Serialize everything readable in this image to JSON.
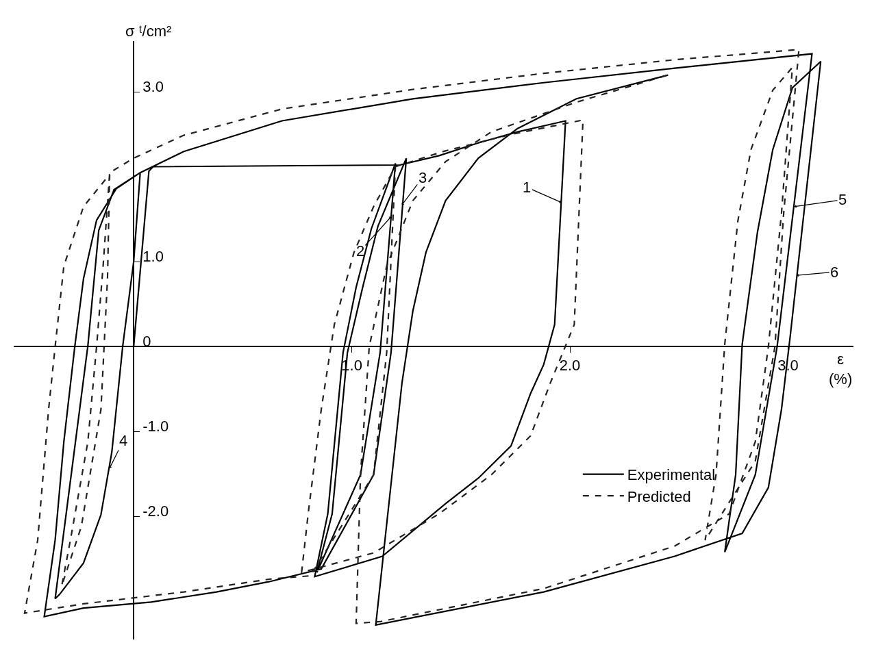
{
  "chart_data": {
    "type": "line",
    "xlabel": "ε (%)",
    "ylabel": "σ ᵗ/cm²",
    "xlim": [
      -0.55,
      3.3
    ],
    "ylim": [
      -3.45,
      3.6
    ],
    "xticks": [
      {
        "value": 1,
        "label": "1.0"
      },
      {
        "value": 2,
        "label": "2.0"
      },
      {
        "value": 3,
        "label": "3.0"
      }
    ],
    "yticks": [
      {
        "value": 3,
        "label": "3.0"
      },
      {
        "value": 1,
        "label": "1.0"
      },
      {
        "value": 0,
        "label": "0"
      },
      {
        "value": -1,
        "label": "-1.0"
      },
      {
        "value": -2,
        "label": "-2.0"
      }
    ],
    "grid": false,
    "legend": "bottom right",
    "marker": "none",
    "series": [
      {
        "name": "Experimental",
        "color": "#000000",
        "line_style": "solid",
        "x": [
          0,
          0.07,
          0.09,
          1.22,
          1.4,
          1.58,
          1.76,
          1.98,
          1.93,
          1.88,
          1.82,
          1.73,
          1.58,
          1.43,
          1.14,
          0.83,
          0.89,
          0.96,
          1.02,
          1.09,
          1.2,
          1.13,
          1.04,
          0.84,
          0.91,
          0.98,
          1.05,
          1.12,
          1.25,
          1.18,
          1.1,
          0.86,
          0.62,
          0.38,
          0.08,
          -0.23,
          -0.41,
          -0.36,
          -0.32,
          -0.27,
          -0.23,
          -0.17,
          -0.08,
          0.03,
          -0.09,
          -0.16,
          -0.21,
          -0.31,
          -0.36,
          -0.34,
          -0.23,
          -0.15,
          -0.1,
          -0.05,
          0,
          0.03,
          0.23,
          0.68,
          1.28,
          1.88,
          2.48,
          3.11,
          2.95,
          2.85,
          2.71,
          2.76,
          2.79,
          2.86,
          2.93,
          3.02,
          3.15,
          3.01,
          2.97,
          2.91,
          2.79,
          2.48,
          1.88,
          1.11,
          1.23,
          1.28,
          1.34,
          1.43,
          1.58,
          1.76,
          2.03,
          2.45
        ],
        "values": [
          0,
          2.07,
          2.12,
          2.14,
          2.25,
          2.4,
          2.53,
          2.66,
          0.26,
          -0.21,
          -0.55,
          -1.17,
          -1.55,
          -1.85,
          -2.47,
          -2.71,
          -1.97,
          -0.07,
          0.7,
          1.39,
          2.16,
          -0.07,
          -1.51,
          -2.66,
          -1.97,
          -0.07,
          0.7,
          1.42,
          2.22,
          -0.07,
          -1.51,
          -2.62,
          -2.77,
          -2.89,
          -3.01,
          -3.08,
          -3.18,
          -2.28,
          -1.12,
          0,
          0.8,
          1.49,
          1.86,
          2.05,
          1.85,
          1.37,
          0.01,
          -1.98,
          -2.97,
          -2.92,
          -2.55,
          -1.98,
          -1.24,
          0.01,
          1.0,
          2.05,
          2.3,
          2.66,
          2.92,
          3.11,
          3.28,
          3.45,
          0,
          -1.51,
          -2.42,
          -1.51,
          0.03,
          1.35,
          2.32,
          3.05,
          3.36,
          0.12,
          -0.74,
          -1.66,
          -2.2,
          -2.47,
          -2.89,
          -3.28,
          -0.43,
          0.42,
          1.11,
          1.72,
          2.22,
          2.57,
          2.92,
          3.2
        ]
      },
      {
        "name": "Predicted",
        "color": "#222222",
        "line_style": "dashed",
        "x": [
          1.2,
          1.42,
          1.73,
          2.06,
          2.02,
          1.91,
          1.82,
          1.64,
          1.4,
          1.1,
          0.77,
          0.8,
          0.86,
          0.92,
          1.01,
          1.1,
          1.2,
          1.16,
          1.1,
          0.81,
          0.62,
          0.23,
          -0.23,
          -0.5,
          -0.44,
          -0.39,
          -0.36,
          -0.32,
          -0.23,
          -0.11,
          -0.12,
          -0.15,
          -0.24,
          -0.33,
          -0.29,
          -0.21,
          -0.17,
          -0.14,
          -0.11,
          0,
          0.23,
          0.68,
          1.28,
          1.88,
          2.48,
          3.05,
          2.98,
          2.94,
          2.85,
          2.62,
          2.67,
          2.71,
          2.77,
          2.83,
          2.93,
          3.02,
          2.97,
          2.91,
          2.85,
          2.73,
          2.48,
          1.88,
          1.13,
          1.02,
          1.04,
          1.08,
          1.16,
          1.28,
          1.43,
          1.64,
          2.03,
          2.45
        ],
        "values": [
          2.12,
          2.3,
          2.5,
          2.67,
          0.26,
          -0.43,
          -1.05,
          -1.51,
          -1.97,
          -2.43,
          -2.66,
          -1.97,
          -0.74,
          0.26,
          1.11,
          1.65,
          2.12,
          -0.07,
          -1.51,
          -2.7,
          -2.74,
          -2.89,
          -3.03,
          -3.14,
          -2.28,
          -0.74,
          0,
          0.95,
          1.65,
          2.03,
          0.8,
          -0.74,
          -2.12,
          -2.82,
          -2.28,
          -1.12,
          0,
          0.95,
          2.05,
          2.22,
          2.49,
          2.8,
          3.03,
          3.22,
          3.38,
          3.5,
          1.57,
          0,
          -1.35,
          -2.28,
          -1.51,
          0.03,
          1.48,
          2.32,
          3.02,
          3.29,
          1.57,
          0,
          -1.12,
          -1.97,
          -2.35,
          -2.85,
          -3.24,
          -3.26,
          -1.51,
          0,
          0.95,
          1.72,
          2.18,
          2.53,
          2.88,
          3.2
        ]
      }
    ],
    "annotations": [
      {
        "text": "1",
        "x": 1.96,
        "y": 1.7
      },
      {
        "text": "2",
        "x": 1.18,
        "y": 1.53
      },
      {
        "text": "3",
        "x": 1.23,
        "y": 1.67
      },
      {
        "text": "4",
        "x": -0.11,
        "y": -1.43
      },
      {
        "text": "5",
        "x": 3.03,
        "y": 1.65
      },
      {
        "text": "6",
        "x": 3.04,
        "y": 0.84
      }
    ]
  }
}
